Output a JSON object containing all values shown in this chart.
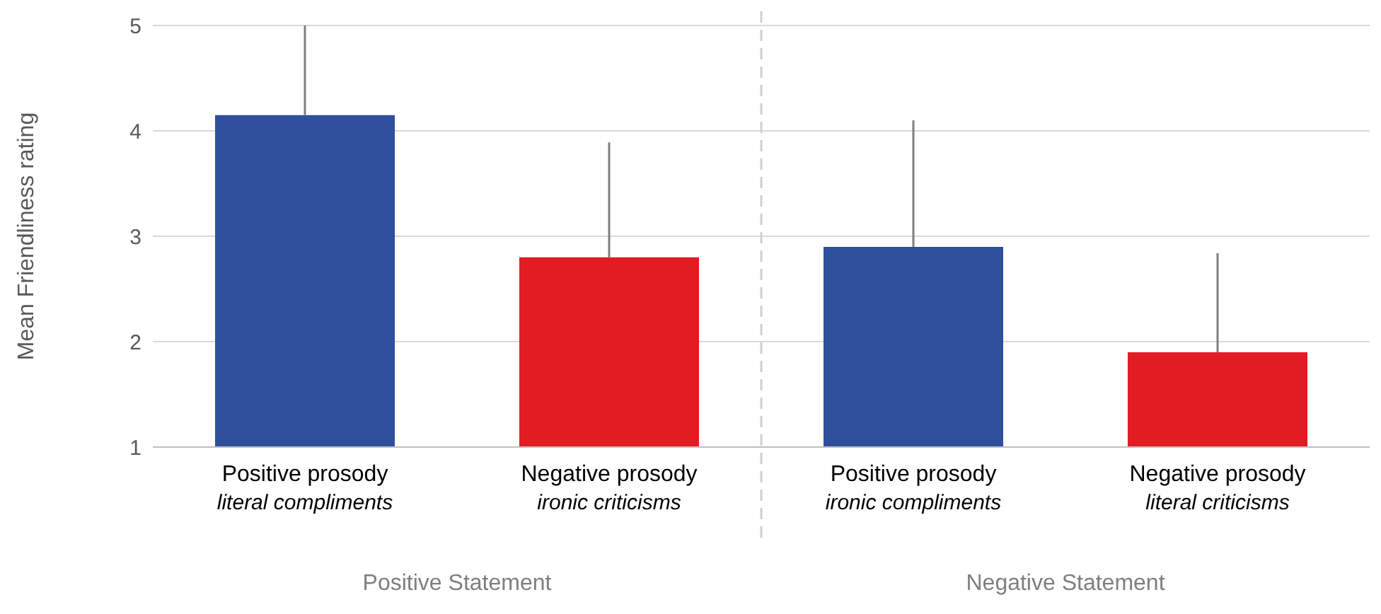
{
  "chart_data": {
    "type": "bar",
    "ylabel": "Mean Friendliness rating",
    "categories": [
      "Positive prosody\nliteral compliments",
      "Negative prosody\nironic criticisms",
      "Positive prosody\nironic compliments",
      "Negative prosody\nliteral criticisms"
    ],
    "values": [
      4.15,
      2.8,
      2.9,
      1.9
    ],
    "colors": [
      "#2e4f9b",
      "#e31b23",
      "#2e4f9b",
      "#e31b23"
    ],
    "errors": [
      [
        4.15,
        5.0
      ],
      [
        2.8,
        3.89
      ],
      [
        2.9,
        4.1
      ],
      [
        1.9,
        2.84
      ]
    ],
    "ylim": [
      1,
      5
    ],
    "yticks": [
      1,
      2,
      3,
      4,
      5
    ],
    "grid": "y",
    "annotations": [
      "Positive Statement",
      "Negative Statement"
    ]
  }
}
